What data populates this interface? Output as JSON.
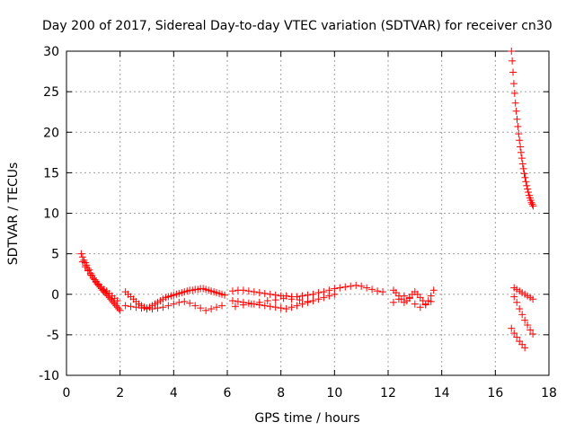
{
  "chart_data": {
    "type": "scatter",
    "title": "Day 200 of 2017, Sidereal Day-to-day VTEC variation (SDTVAR) for receiver cn30",
    "xlabel": "GPS time / hours",
    "ylabel": "SDTVAR / TECUs",
    "xlim": [
      0,
      18
    ],
    "ylim": [
      -10,
      30
    ],
    "xticks": [
      0,
      2,
      4,
      6,
      8,
      10,
      12,
      14,
      16,
      18
    ],
    "yticks": [
      -10,
      -5,
      0,
      5,
      10,
      15,
      20,
      25,
      30
    ],
    "grid": true,
    "marker": "+",
    "color": "#ff0000",
    "series": [
      {
        "name": "SDTVAR",
        "x": [
          0.55,
          0.6,
          0.65,
          0.7,
          0.75,
          0.8,
          0.85,
          0.9,
          0.95,
          1.0,
          1.05,
          1.1,
          1.15,
          1.2,
          1.25,
          1.3,
          1.35,
          1.4,
          1.45,
          1.5,
          1.55,
          1.6,
          1.65,
          1.7,
          1.75,
          1.8,
          1.85,
          1.9,
          1.95,
          2.0,
          0.6,
          0.7,
          0.8,
          0.9,
          1.0,
          1.1,
          1.2,
          1.3,
          1.4,
          1.5,
          1.6,
          1.7,
          1.8,
          1.9,
          2.2,
          2.3,
          2.4,
          2.5,
          2.6,
          2.7,
          2.8,
          2.9,
          3.0,
          3.1,
          3.2,
          3.3,
          3.4,
          3.5,
          3.6,
          3.7,
          3.8,
          3.9,
          4.0,
          4.1,
          4.2,
          4.3,
          4.4,
          4.5,
          4.6,
          4.7,
          4.8,
          4.9,
          5.0,
          5.1,
          5.2,
          5.3,
          5.4,
          5.5,
          5.6,
          5.7,
          5.8,
          5.9,
          2.2,
          2.4,
          2.6,
          2.8,
          3.0,
          3.2,
          3.4,
          3.6,
          3.8,
          4.0,
          4.2,
          4.4,
          4.6,
          4.8,
          5.0,
          5.2,
          5.4,
          5.6,
          5.8,
          6.2,
          6.4,
          6.6,
          6.8,
          7.0,
          7.2,
          7.4,
          7.6,
          7.8,
          8.0,
          8.2,
          8.4,
          8.6,
          8.8,
          9.0,
          9.2,
          9.4,
          9.6,
          9.8,
          10.0,
          10.2,
          10.4,
          10.6,
          10.8,
          11.0,
          11.2,
          11.4,
          11.6,
          11.8,
          6.2,
          6.4,
          6.6,
          6.8,
          7.0,
          7.2,
          7.4,
          7.6,
          7.8,
          8.0,
          8.2,
          8.4,
          8.6,
          8.8,
          9.0,
          9.2,
          9.4,
          9.6,
          9.8,
          10.0,
          6.3,
          6.6,
          6.9,
          7.2,
          7.5,
          7.8,
          8.1,
          8.4,
          8.7,
          9.0,
          12.2,
          12.3,
          12.4,
          12.5,
          12.6,
          12.7,
          12.8,
          12.9,
          13.0,
          13.1,
          13.2,
          13.3,
          13.4,
          13.5,
          13.6,
          13.7,
          12.2,
          12.4,
          12.6,
          12.8,
          13.0,
          13.2,
          13.4,
          13.6,
          16.6,
          16.63,
          16.66,
          16.69,
          16.72,
          16.75,
          16.78,
          16.81,
          16.84,
          16.87,
          16.9,
          16.93,
          16.96,
          16.99,
          17.02,
          17.05,
          17.08,
          17.11,
          17.14,
          17.17,
          17.2,
          17.23,
          17.26,
          17.29,
          17.32,
          17.35,
          17.38,
          17.41,
          16.7,
          16.8,
          16.9,
          17.0,
          17.1,
          17.2,
          17.3,
          17.4,
          16.7,
          16.8,
          16.9,
          17.0,
          17.1,
          17.2,
          17.3,
          17.4,
          16.6,
          16.7,
          16.8,
          16.9,
          17.0,
          17.1
        ],
        "y": [
          5.0,
          4.6,
          4.2,
          3.9,
          3.6,
          3.2,
          3.0,
          2.6,
          2.3,
          2.0,
          1.8,
          1.5,
          1.3,
          1.1,
          0.9,
          0.7,
          0.5,
          0.3,
          0.2,
          0.0,
          -0.2,
          -0.4,
          -0.6,
          -0.8,
          -1.0,
          -1.2,
          -1.4,
          -1.6,
          -1.8,
          -2.0,
          4.0,
          3.4,
          2.9,
          2.4,
          2.0,
          1.6,
          1.2,
          0.9,
          0.6,
          0.4,
          0.1,
          -0.2,
          -0.5,
          -0.8,
          0.3,
          0.0,
          -0.3,
          -0.6,
          -0.9,
          -1.2,
          -1.4,
          -1.6,
          -1.7,
          -1.6,
          -1.4,
          -1.2,
          -1.0,
          -0.8,
          -0.6,
          -0.4,
          -0.3,
          -0.2,
          -0.1,
          0.0,
          0.1,
          0.2,
          0.3,
          0.4,
          0.5,
          0.5,
          0.6,
          0.6,
          0.7,
          0.7,
          0.6,
          0.5,
          0.4,
          0.3,
          0.2,
          0.1,
          0.0,
          -0.1,
          -1.4,
          -1.5,
          -1.6,
          -1.7,
          -1.8,
          -1.8,
          -1.7,
          -1.6,
          -1.4,
          -1.2,
          -1.0,
          -0.9,
          -1.1,
          -1.4,
          -1.7,
          -2.0,
          -1.8,
          -1.6,
          -1.4,
          0.4,
          0.5,
          0.5,
          0.4,
          0.3,
          0.2,
          0.1,
          0.0,
          -0.1,
          -0.2,
          -0.2,
          -0.3,
          -0.3,
          -0.2,
          -0.1,
          0.0,
          0.2,
          0.3,
          0.5,
          0.7,
          0.8,
          0.9,
          1.0,
          1.1,
          1.0,
          0.8,
          0.6,
          0.4,
          0.3,
          -0.8,
          -0.9,
          -1.0,
          -1.1,
          -1.2,
          -1.3,
          -1.4,
          -1.5,
          -1.6,
          -1.7,
          -1.8,
          -1.6,
          -1.4,
          -1.2,
          -1.0,
          -0.8,
          -0.6,
          -0.4,
          -0.2,
          0.0,
          -1.5,
          -1.3,
          -1.2,
          -1.0,
          -0.8,
          -0.7,
          -0.5,
          -0.6,
          -0.7,
          -0.9,
          0.5,
          0.2,
          -0.2,
          -0.6,
          -1.0,
          -0.8,
          -0.4,
          0.0,
          0.3,
          0.0,
          -0.4,
          -0.8,
          -1.2,
          -0.8,
          -0.2,
          0.5,
          -1.0,
          -0.6,
          -0.2,
          -0.5,
          -1.2,
          -1.6,
          -1.3,
          -0.9,
          30.0,
          28.8,
          27.4,
          26.0,
          24.8,
          23.6,
          22.6,
          21.6,
          20.7,
          19.8,
          19.0,
          18.2,
          17.5,
          16.8,
          16.1,
          15.5,
          14.9,
          14.4,
          13.9,
          13.4,
          13.0,
          12.6,
          12.2,
          11.9,
          11.6,
          11.3,
          11.1,
          10.9,
          0.8,
          0.6,
          0.4,
          0.2,
          0.0,
          -0.2,
          -0.4,
          -0.6,
          -0.3,
          -1.0,
          -1.8,
          -2.5,
          -3.2,
          -3.8,
          -4.4,
          -4.9,
          -4.2,
          -4.8,
          -5.3,
          -5.8,
          -6.2,
          -6.6
        ]
      }
    ]
  }
}
